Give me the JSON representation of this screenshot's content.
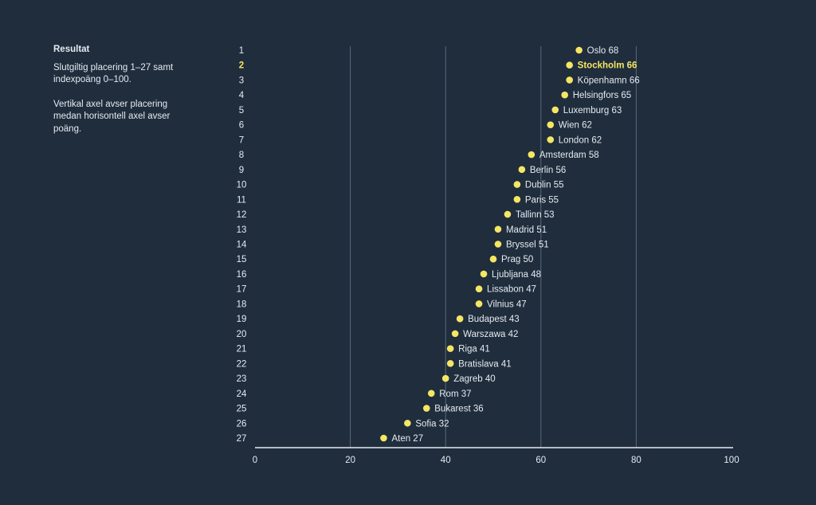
{
  "sidebar": {
    "title": "Resultat",
    "text1": "Slutgiltig placering 1–27 samt indexpoäng 0–100.",
    "text2": "Vertikal axel avser placering medan horisontell axel avser poäng."
  },
  "colors": {
    "background": "#1f2d3d",
    "dot": "#f5e663",
    "highlight_text": "#f5e663",
    "text": "#e6ebf0",
    "grid": "#5b6b7c",
    "axis": "#e6ebf0"
  },
  "chart_data": {
    "type": "scatter",
    "title": "Resultat",
    "xlabel": "",
    "ylabel": "",
    "xlim": [
      0,
      100
    ],
    "ylim": [
      1,
      27
    ],
    "x_ticks": [
      0,
      20,
      40,
      60,
      80,
      100
    ],
    "grid": "vertical",
    "highlight_rank": 2,
    "points": [
      {
        "rank": 1,
        "city": "Oslo",
        "score": 68
      },
      {
        "rank": 2,
        "city": "Stockholm",
        "score": 66
      },
      {
        "rank": 3,
        "city": "Köpenhamn",
        "score": 66
      },
      {
        "rank": 4,
        "city": "Helsingfors",
        "score": 65
      },
      {
        "rank": 5,
        "city": "Luxemburg",
        "score": 63
      },
      {
        "rank": 6,
        "city": "Wien",
        "score": 62
      },
      {
        "rank": 7,
        "city": "London",
        "score": 62
      },
      {
        "rank": 8,
        "city": "Amsterdam",
        "score": 58
      },
      {
        "rank": 9,
        "city": "Berlin",
        "score": 56
      },
      {
        "rank": 10,
        "city": "Dublin",
        "score": 55
      },
      {
        "rank": 11,
        "city": "Paris",
        "score": 55
      },
      {
        "rank": 12,
        "city": "Tallinn",
        "score": 53
      },
      {
        "rank": 13,
        "city": "Madrid",
        "score": 51
      },
      {
        "rank": 14,
        "city": "Bryssel",
        "score": 51
      },
      {
        "rank": 15,
        "city": "Prag",
        "score": 50
      },
      {
        "rank": 16,
        "city": "Ljubljana",
        "score": 48
      },
      {
        "rank": 17,
        "city": "Lissabon",
        "score": 47
      },
      {
        "rank": 18,
        "city": "Vilnius",
        "score": 47
      },
      {
        "rank": 19,
        "city": "Budapest",
        "score": 43
      },
      {
        "rank": 20,
        "city": "Warszawa",
        "score": 42
      },
      {
        "rank": 21,
        "city": "Riga",
        "score": 41
      },
      {
        "rank": 22,
        "city": "Bratislava",
        "score": 41
      },
      {
        "rank": 23,
        "city": "Zagreb",
        "score": 40
      },
      {
        "rank": 24,
        "city": "Rom",
        "score": 37
      },
      {
        "rank": 25,
        "city": "Bukarest",
        "score": 36
      },
      {
        "rank": 26,
        "city": "Sofia",
        "score": 32
      },
      {
        "rank": 27,
        "city": "Aten",
        "score": 27
      }
    ]
  }
}
